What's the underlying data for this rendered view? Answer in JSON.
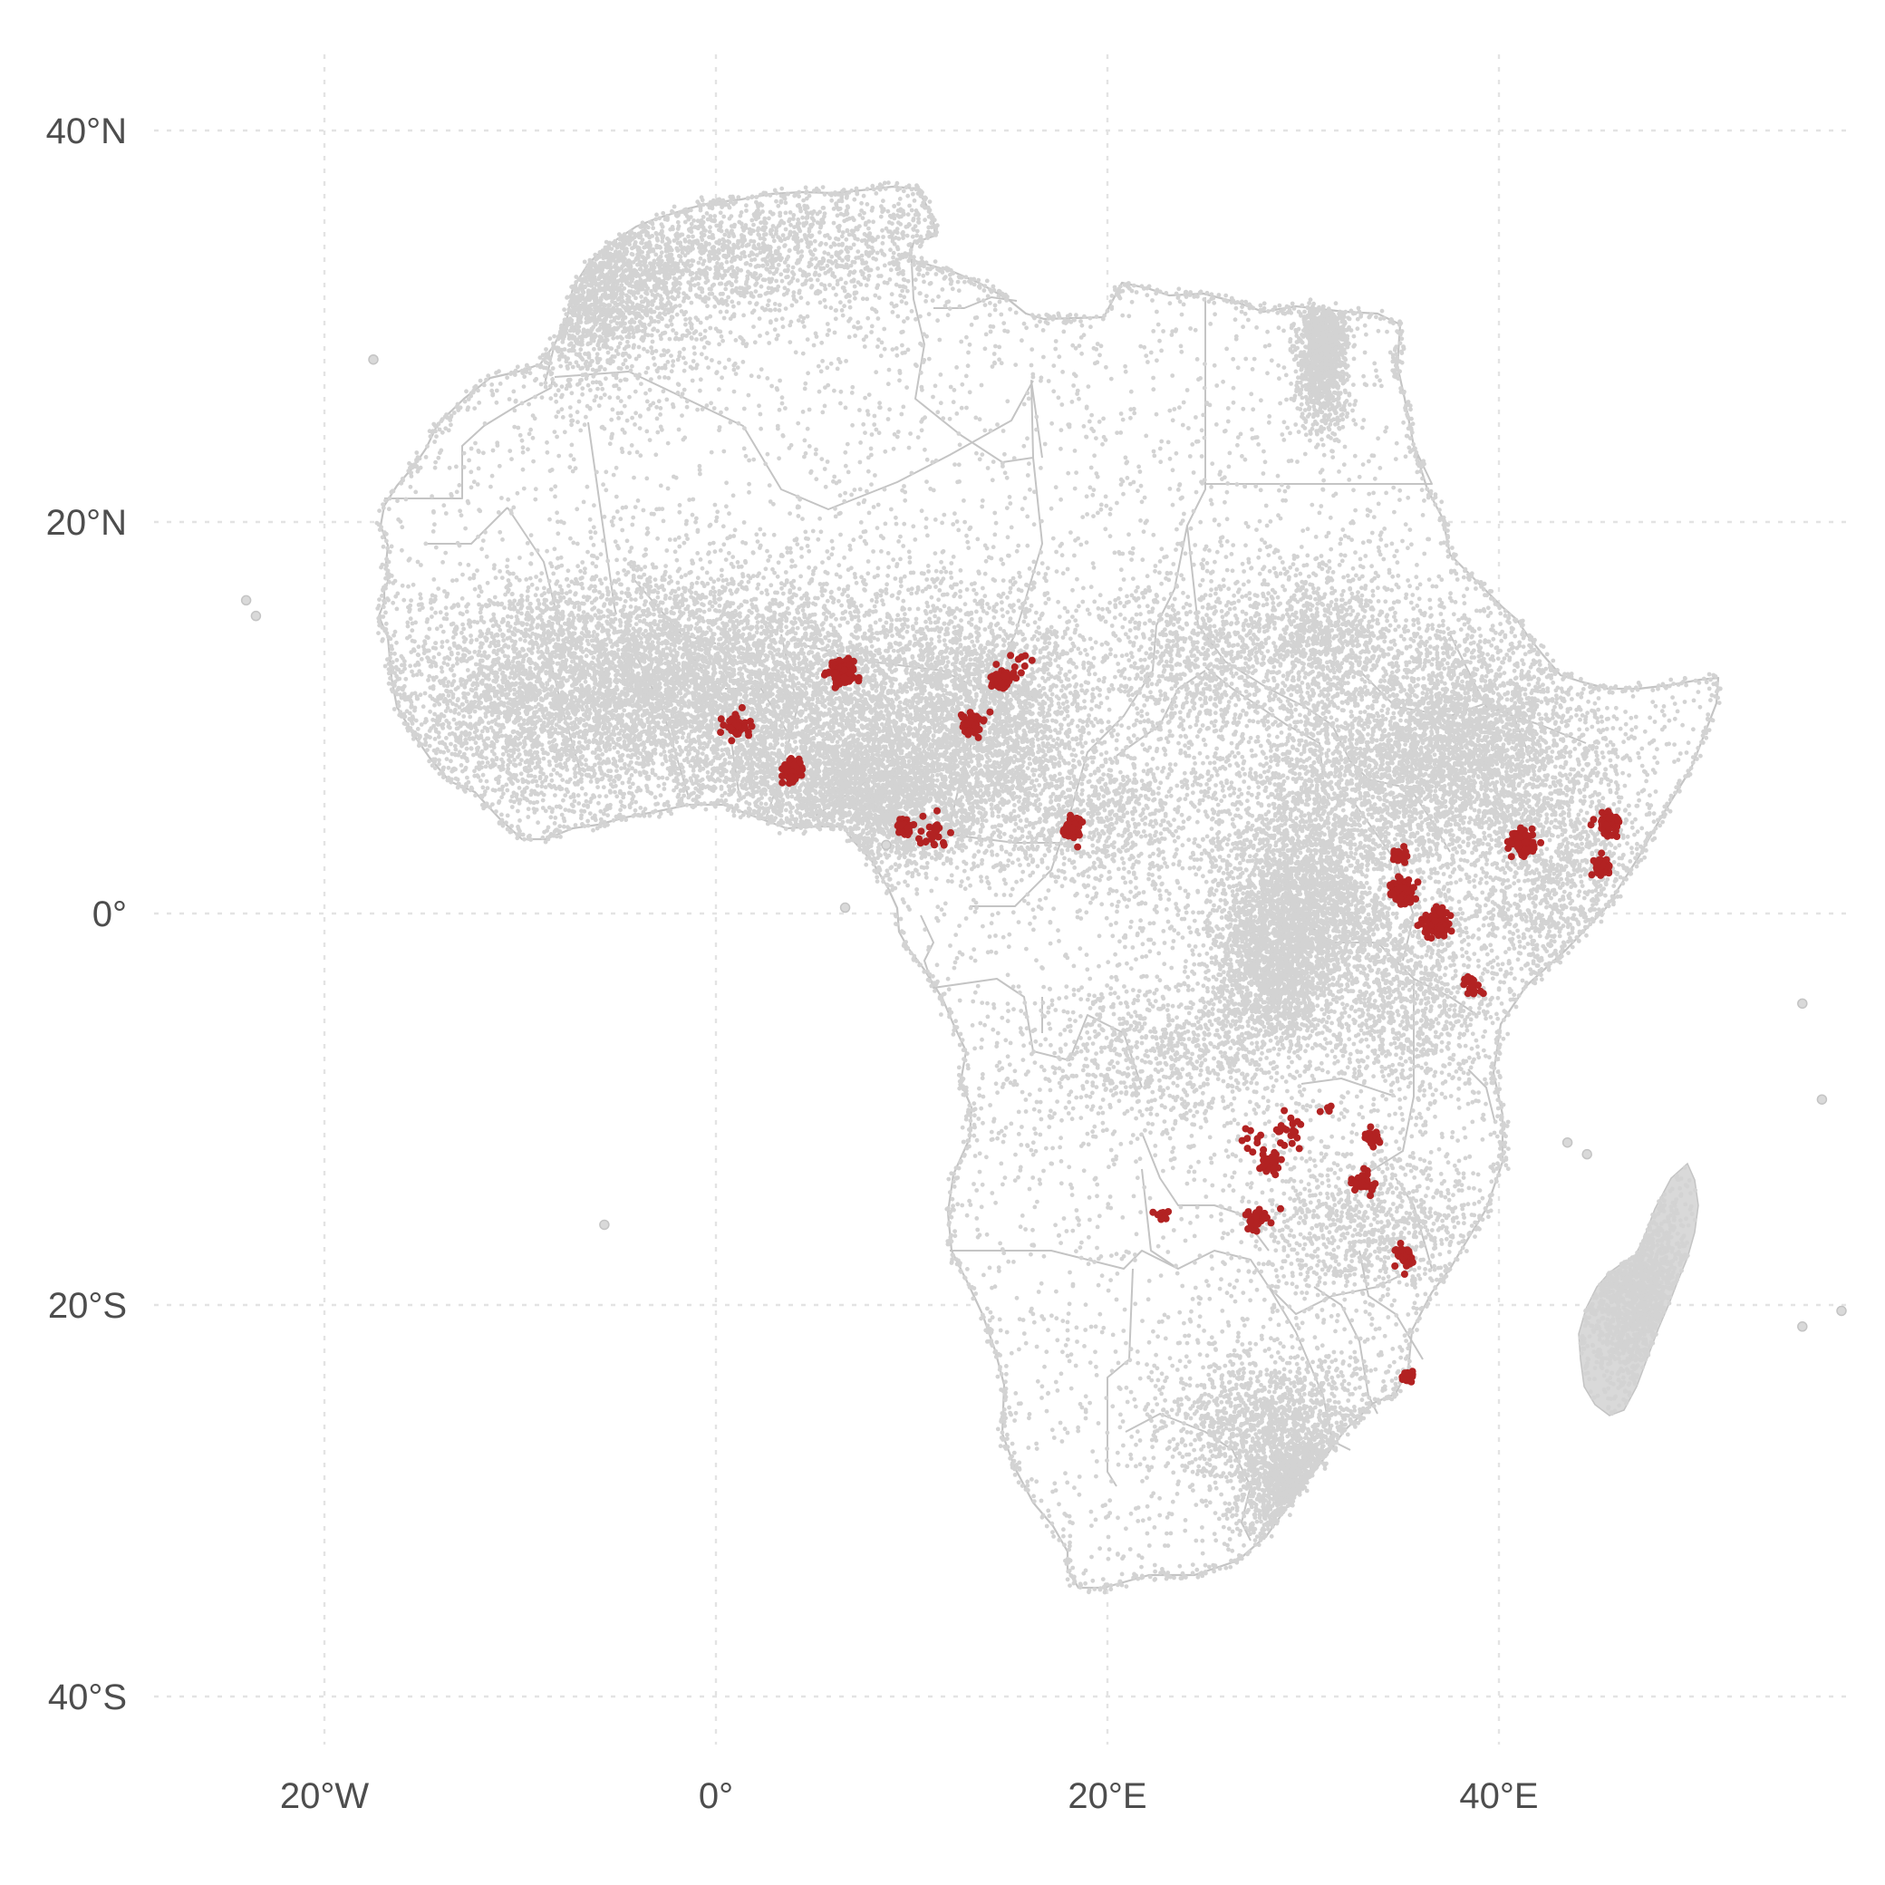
{
  "chart_data": {
    "type": "scatter",
    "title": "",
    "xlabel": "",
    "ylabel": "",
    "projection": "longitude/latitude (equirectangular)",
    "xlim": [
      -28,
      58
    ],
    "ylim": [
      -43,
      45
    ],
    "grid": true,
    "x_ticks": [
      {
        "value": -20,
        "label": "20°W"
      },
      {
        "value": 0,
        "label": "0°"
      },
      {
        "value": 20,
        "label": "20°E"
      },
      {
        "value": 40,
        "label": "40°E"
      }
    ],
    "y_ticks": [
      {
        "value": 40,
        "label": "40°N"
      },
      {
        "value": 20,
        "label": "20°N"
      },
      {
        "value": 0,
        "label": "0°"
      },
      {
        "value": -20,
        "label": "20°S"
      },
      {
        "value": -40,
        "label": "40°S"
      }
    ],
    "basemap": "Africa country boundaries",
    "colors": {
      "background_points": "#d3d3d3",
      "highlight_points": "#b22222",
      "borders": "#c4c4c4",
      "grid": "#e3e3e3"
    },
    "background_density_regions": [
      {
        "lon": 5,
        "lat": 10,
        "spread": [
          7,
          3.5
        ],
        "weight": 10
      },
      {
        "lon": -3,
        "lat": 12.5,
        "spread": [
          5,
          2.5
        ],
        "weight": 7
      },
      {
        "lon": 8,
        "lat": 6,
        "spread": [
          3.5,
          2
        ],
        "weight": 6
      },
      {
        "lon": 14,
        "lat": 11,
        "spread": [
          2.5,
          2.5
        ],
        "weight": 3
      },
      {
        "lon": 30,
        "lat": 0.5,
        "spread": [
          2.5,
          2.5
        ],
        "weight": 6
      },
      {
        "lon": 28.5,
        "lat": -3,
        "spread": [
          1.5,
          2
        ],
        "weight": 3
      },
      {
        "lon": 38.5,
        "lat": 9,
        "spread": [
          3,
          3
        ],
        "weight": 6
      },
      {
        "lon": 33,
        "lat": 7,
        "spread": [
          4,
          2.5
        ],
        "weight": 4
      },
      {
        "lon": 31,
        "lat": 14,
        "spread": [
          2,
          2
        ],
        "weight": 2
      },
      {
        "lon": 25,
        "lat": 13,
        "spread": [
          2.5,
          2.5
        ],
        "weight": 2
      },
      {
        "lon": 33.5,
        "lat": -16,
        "spread": [
          3,
          2
        ],
        "weight": 2
      },
      {
        "lon": 28.5,
        "lat": -26,
        "spread": [
          3,
          2
        ],
        "weight": 3
      },
      {
        "lon": 30,
        "lat": -29.5,
        "spread": [
          1.5,
          1.5
        ],
        "weight": 2
      },
      {
        "lon": 47,
        "lat": -19,
        "spread": [
          1.5,
          3
        ],
        "weight": 3
      },
      {
        "lon": 31,
        "lat": 29,
        "spread": [
          0.6,
          2
        ],
        "weight": 3
      },
      {
        "lon": 43,
        "lat": 1.5,
        "spread": [
          3,
          4
        ],
        "weight": 3
      },
      {
        "lon": -10,
        "lat": 10.5,
        "spread": [
          4,
          3
        ],
        "weight": 4
      },
      {
        "lon": 19,
        "lat": 5,
        "spread": [
          3,
          2
        ],
        "weight": 2
      },
      {
        "lon": 23,
        "lat": -7,
        "spread": [
          4,
          2
        ],
        "weight": 2
      },
      {
        "lon": 2,
        "lat": 34,
        "spread": [
          7,
          1.8
        ],
        "weight": 3
      },
      {
        "lon": -7,
        "lat": 32,
        "spread": [
          3,
          2.5
        ],
        "weight": 3
      },
      {
        "lon": 35.5,
        "lat": -4.5,
        "spread": [
          2,
          2.5
        ],
        "weight": 2
      }
    ],
    "highlight_clusters": [
      {
        "lon": 6.5,
        "lat": 12.3,
        "spread": 0.55,
        "n": 140
      },
      {
        "lon": 14.6,
        "lat": 11.9,
        "spread": 0.45,
        "n": 80
      },
      {
        "lon": 15.5,
        "lat": 12.8,
        "spread": 0.9,
        "n": 12
      },
      {
        "lon": 1.0,
        "lat": 9.6,
        "spread": 0.6,
        "n": 45
      },
      {
        "lon": 13.1,
        "lat": 9.7,
        "spread": 0.55,
        "n": 40
      },
      {
        "lon": 3.9,
        "lat": 7.3,
        "spread": 0.5,
        "n": 90
      },
      {
        "lon": 9.6,
        "lat": 4.4,
        "spread": 0.35,
        "n": 50
      },
      {
        "lon": 11.2,
        "lat": 4.1,
        "spread": 0.7,
        "n": 25
      },
      {
        "lon": 18.2,
        "lat": 4.4,
        "spread": 0.5,
        "n": 45
      },
      {
        "lon": 35.1,
        "lat": 1.1,
        "spread": 0.55,
        "n": 120
      },
      {
        "lon": 35.0,
        "lat": 2.9,
        "spread": 0.45,
        "n": 25
      },
      {
        "lon": 36.8,
        "lat": -0.5,
        "spread": 0.55,
        "n": 120
      },
      {
        "lon": 38.6,
        "lat": -3.6,
        "spread": 0.55,
        "n": 25
      },
      {
        "lon": 41.2,
        "lat": 3.6,
        "spread": 0.55,
        "n": 70
      },
      {
        "lon": 45.6,
        "lat": 4.6,
        "spread": 0.45,
        "n": 70
      },
      {
        "lon": 45.3,
        "lat": 2.4,
        "spread": 0.4,
        "n": 70
      },
      {
        "lon": 29.2,
        "lat": -11.3,
        "spread": 0.7,
        "n": 20
      },
      {
        "lon": 28.2,
        "lat": -12.7,
        "spread": 0.55,
        "n": 35
      },
      {
        "lon": 33.5,
        "lat": -11.5,
        "spread": 0.4,
        "n": 30
      },
      {
        "lon": 33.0,
        "lat": -13.8,
        "spread": 0.5,
        "n": 40
      },
      {
        "lon": 27.8,
        "lat": -15.6,
        "spread": 0.6,
        "n": 35
      },
      {
        "lon": 22.8,
        "lat": -15.4,
        "spread": 0.3,
        "n": 10
      },
      {
        "lon": 31.3,
        "lat": -10.0,
        "spread": 0.35,
        "n": 6
      },
      {
        "lon": 35.2,
        "lat": -17.5,
        "spread": 0.5,
        "n": 40
      },
      {
        "lon": 35.3,
        "lat": -23.7,
        "spread": 0.3,
        "n": 14
      },
      {
        "lon": 27.5,
        "lat": -11.6,
        "spread": 0.6,
        "n": 10
      }
    ]
  }
}
